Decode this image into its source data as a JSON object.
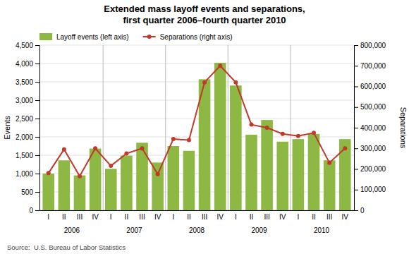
{
  "chart_data": {
    "type": "bar",
    "title": "Extended mass layoff events and separations,\nfirst quarter 2006–fourth quarter 2010",
    "categories": [
      "I",
      "II",
      "III",
      "IV",
      "I",
      "II",
      "III",
      "IV",
      "I",
      "II",
      "III",
      "IV",
      "I",
      "II",
      "III",
      "IV",
      "I",
      "II",
      "III",
      "IV"
    ],
    "groups": [
      "2006",
      "2007",
      "2008",
      "2009",
      "2010"
    ],
    "series": [
      {
        "name": "Layoff events (left axis)",
        "type": "bar",
        "color": "#8DB843",
        "values": [
          1000,
          1360,
          950,
          1680,
          1130,
          1490,
          1840,
          1300,
          1750,
          1620,
          3570,
          4020,
          3400,
          2060,
          2460,
          1870,
          1940,
          2080,
          1360,
          1940
        ]
      },
      {
        "name": "Separations (right axis)",
        "type": "line",
        "axis": "y2",
        "color": "#C0392B",
        "marker": "circle",
        "values": [
          180000,
          295000,
          165000,
          300000,
          215000,
          275000,
          300000,
          175000,
          345000,
          340000,
          620000,
          700000,
          620000,
          415000,
          400000,
          370000,
          360000,
          375000,
          230000,
          300000
        ]
      }
    ],
    "ylabel": "Events",
    "y2label": "Separations",
    "ylim": [
      0,
      4500
    ],
    "yticks": [
      0,
      500,
      {
        "value": 1000,
        "label": "1,000"
      },
      {
        "value": 1500,
        "label": "1,500"
      },
      {
        "value": 2000,
        "label": "2,000"
      },
      {
        "value": 2500,
        "label": "2,500"
      },
      {
        "value": 3000,
        "label": "3,000"
      },
      {
        "value": 3500,
        "label": "3,500"
      },
      {
        "value": 4000,
        "label": "4,000"
      },
      {
        "value": 4500,
        "label": "4,500"
      }
    ],
    "y2lim": [
      0,
      800000
    ],
    "y2ticks": [
      0,
      {
        "value": 100000,
        "label": "100,000"
      },
      {
        "value": 200000,
        "label": "200,000"
      },
      {
        "value": 300000,
        "label": "300,000"
      },
      {
        "value": 400000,
        "label": "400,000"
      },
      {
        "value": 500000,
        "label": "500,000"
      },
      {
        "value": 600000,
        "label": "600,000"
      },
      {
        "value": 700000,
        "label": "700,000"
      },
      {
        "value": 800000,
        "label": "800,000"
      }
    ],
    "grid": true,
    "legend": "upper left",
    "source": "Source:  U.S. Bureau of Labor Statistics"
  }
}
